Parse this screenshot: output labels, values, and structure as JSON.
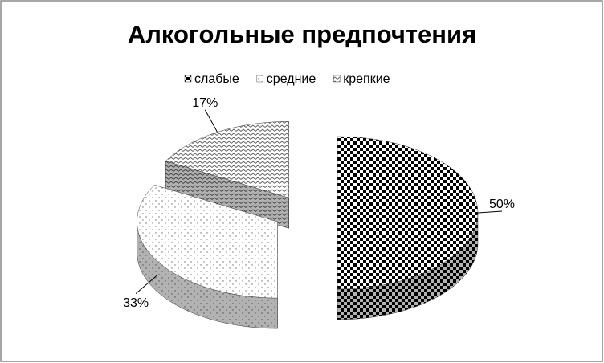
{
  "chart_data": {
    "type": "pie3d",
    "title": "Алкогольные предпочтения",
    "categories": [
      "слабые",
      "средние",
      "крепкие"
    ],
    "values": [
      50,
      33,
      17
    ],
    "value_labels": [
      "50%",
      "33%",
      "17%"
    ],
    "colors": [
      "#000000",
      "#707070",
      "#606060"
    ],
    "legend": "top"
  }
}
